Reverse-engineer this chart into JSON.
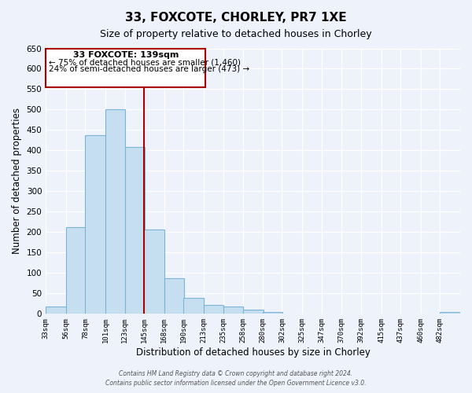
{
  "title": "33, FOXCOTE, CHORLEY, PR7 1XE",
  "subtitle": "Size of property relative to detached houses in Chorley",
  "xlabel": "Distribution of detached houses by size in Chorley",
  "ylabel": "Number of detached properties",
  "bin_labels": [
    "33sqm",
    "56sqm",
    "78sqm",
    "101sqm",
    "123sqm",
    "145sqm",
    "168sqm",
    "190sqm",
    "213sqm",
    "235sqm",
    "258sqm",
    "280sqm",
    "302sqm",
    "325sqm",
    "347sqm",
    "370sqm",
    "392sqm",
    "415sqm",
    "437sqm",
    "460sqm",
    "482sqm"
  ],
  "bar_values": [
    18,
    213,
    437,
    500,
    408,
    207,
    88,
    40,
    22,
    18,
    11,
    5,
    0,
    0,
    0,
    0,
    0,
    0,
    0,
    0,
    4
  ],
  "bar_color": "#c6dff0",
  "bar_edge_color": "#7ab5d8",
  "property_line_label": "33 FOXCOTE: 139sqm",
  "annotation_line1": "← 75% of detached houses are smaller (1,460)",
  "annotation_line2": "24% of semi-detached houses are larger (473) →",
  "annotation_box_color": "#ffffff",
  "annotation_box_edge": "#aa0000",
  "vline_color": "#aa0000",
  "yticks": [
    0,
    50,
    100,
    150,
    200,
    250,
    300,
    350,
    400,
    450,
    500,
    550,
    600,
    650
  ],
  "ylim": [
    0,
    650
  ],
  "footer1": "Contains HM Land Registry data © Crown copyright and database right 2024.",
  "footer2": "Contains public sector information licensed under the Open Government Licence v3.0.",
  "background_color": "#eef2fb",
  "grid_color": "#ffffff",
  "bin_width": 23
}
